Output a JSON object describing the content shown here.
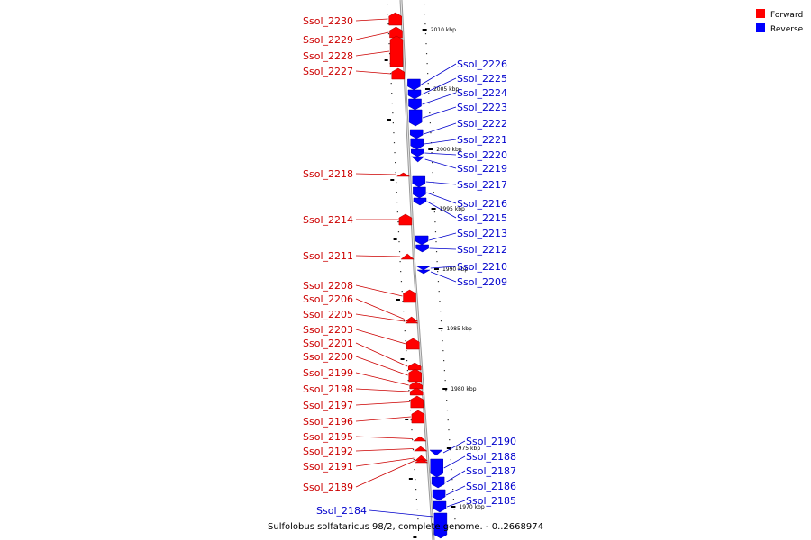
{
  "caption": "Sulfolobus solfataricus 98/2, complete genome. - 0..2668974",
  "legend": [
    {
      "label": "Forward",
      "color": "#ff0000"
    },
    {
      "label": "Reverse",
      "color": "#0000ff"
    }
  ],
  "colors": {
    "forward_label": "#cc0000",
    "reverse_label": "#0000cc",
    "axis": "#999999"
  },
  "ticks": [
    {
      "label": "2010 kbp",
      "kbp": 2010
    },
    {
      "label": "2005 kbp",
      "kbp": 2005
    },
    {
      "label": "2000 kbp",
      "kbp": 2000
    },
    {
      "label": "1995 kbp",
      "kbp": 1995
    },
    {
      "label": "1990 kbp",
      "kbp": 1990
    },
    {
      "label": "1985 kbp",
      "kbp": 1985
    },
    {
      "label": "1980 kbp",
      "kbp": 1980
    },
    {
      "label": "1975 kbp",
      "kbp": 1975
    },
    {
      "label": "1970 kbp",
      "kbp": 1970
    }
  ],
  "forward_genes": [
    "Ssol_2230",
    "Ssol_2229",
    "Ssol_2228",
    "Ssol_2227",
    "Ssol_2218",
    "Ssol_2214",
    "Ssol_2211",
    "Ssol_2208",
    "Ssol_2206",
    "Ssol_2205",
    "Ssol_2203",
    "Ssol_2201",
    "Ssol_2200",
    "Ssol_2199",
    "Ssol_2198",
    "Ssol_2197",
    "Ssol_2196",
    "Ssol_2195",
    "Ssol_2192",
    "Ssol_2191",
    "Ssol_2189"
  ],
  "reverse_genes": [
    "Ssol_2226",
    "Ssol_2225",
    "Ssol_2224",
    "Ssol_2223",
    "Ssol_2222",
    "Ssol_2221",
    "Ssol_2220",
    "Ssol_2219",
    "Ssol_2217",
    "Ssol_2216",
    "Ssol_2215",
    "Ssol_2213",
    "Ssol_2212",
    "Ssol_2210",
    "Ssol_2209",
    "Ssol_2190",
    "Ssol_2188",
    "Ssol_2187",
    "Ssol_2186",
    "Ssol_2185",
    "Ssol_2184"
  ]
}
